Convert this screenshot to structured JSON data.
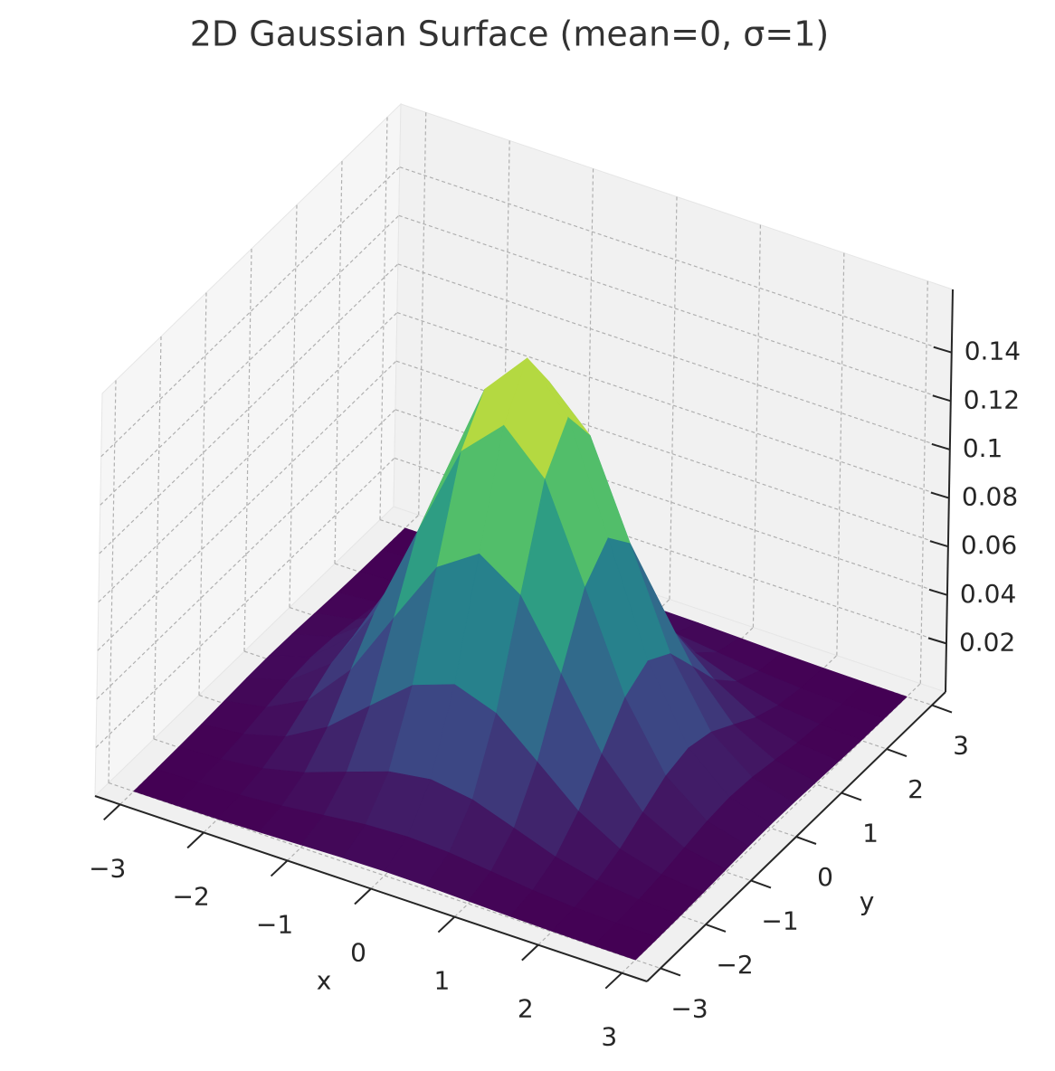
{
  "chart_data": {
    "type": "surface",
    "title": "2D Gaussian Surface (mean=0, σ=1)",
    "xlabel": "x",
    "ylabel": "y",
    "colormap": "viridis",
    "grid": true,
    "x": [
      -3,
      -2.5,
      -2,
      -1.5,
      -1,
      -0.5,
      0,
      0.5,
      1,
      1.5,
      2,
      2.5,
      3
    ],
    "y": [
      -3,
      -2.5,
      -2,
      -1.5,
      -1,
      -0.5,
      0,
      0.5,
      1,
      1.5,
      2,
      2.5,
      3
    ],
    "z": [
      [
        2e-05,
        8e-05,
        0.00024,
        0.00057,
        0.00107,
        0.00156,
        0.00177,
        0.00156,
        0.00107,
        0.00057,
        0.00024,
        8e-05,
        2e-05
      ],
      [
        8e-05,
        0.00031,
        0.00095,
        0.00227,
        0.00424,
        0.00617,
        0.00699,
        0.00617,
        0.00424,
        0.00227,
        0.00095,
        0.00031,
        8e-05
      ],
      [
        0.00024,
        0.00095,
        0.00292,
        0.00699,
        0.01306,
        0.01901,
        0.02154,
        0.01901,
        0.01306,
        0.00699,
        0.00292,
        0.00095,
        0.00024
      ],
      [
        0.00057,
        0.00227,
        0.00699,
        0.01677,
        0.03134,
        0.0456,
        0.05167,
        0.0456,
        0.03134,
        0.01677,
        0.00699,
        0.00227,
        0.00057
      ],
      [
        0.00107,
        0.00424,
        0.01306,
        0.03134,
        0.05855,
        0.08519,
        0.09653,
        0.08519,
        0.05855,
        0.03134,
        0.01306,
        0.00424,
        0.00107
      ],
      [
        0.00156,
        0.00617,
        0.01901,
        0.0456,
        0.08519,
        0.12395,
        0.14045,
        0.12395,
        0.08519,
        0.0456,
        0.01901,
        0.00617,
        0.00156
      ],
      [
        0.00177,
        0.00699,
        0.02154,
        0.05167,
        0.09653,
        0.14045,
        0.15915,
        0.14045,
        0.09653,
        0.05167,
        0.02154,
        0.00699,
        0.00177
      ],
      [
        0.00156,
        0.00617,
        0.01901,
        0.0456,
        0.08519,
        0.12395,
        0.14045,
        0.12395,
        0.08519,
        0.0456,
        0.01901,
        0.00617,
        0.00156
      ],
      [
        0.00107,
        0.00424,
        0.01306,
        0.03134,
        0.05855,
        0.08519,
        0.09653,
        0.08519,
        0.05855,
        0.03134,
        0.01306,
        0.00424,
        0.00107
      ],
      [
        0.00057,
        0.00227,
        0.00699,
        0.01677,
        0.03134,
        0.0456,
        0.05167,
        0.0456,
        0.03134,
        0.01677,
        0.00699,
        0.00227,
        0.00057
      ],
      [
        0.00024,
        0.00095,
        0.00292,
        0.00699,
        0.01306,
        0.01901,
        0.02154,
        0.01901,
        0.01306,
        0.00699,
        0.00292,
        0.00095,
        0.00024
      ],
      [
        8e-05,
        0.00031,
        0.00095,
        0.00227,
        0.00424,
        0.00617,
        0.00699,
        0.00617,
        0.00424,
        0.00227,
        0.00095,
        0.00031,
        8e-05
      ],
      [
        2e-05,
        8e-05,
        0.00024,
        0.00057,
        0.00107,
        0.00156,
        0.00177,
        0.00156,
        0.00107,
        0.00057,
        0.00024,
        8e-05,
        2e-05
      ]
    ],
    "xlim": [
      -3.3,
      3.3
    ],
    "ylim": [
      -3.3,
      3.3
    ],
    "zlim": [
      0,
      0.166
    ],
    "xticks": [
      {
        "value": -3,
        "label": "−3"
      },
      {
        "value": -2,
        "label": "−2"
      },
      {
        "value": -1,
        "label": "−1"
      },
      0,
      1,
      2,
      3
    ],
    "yticks": [
      {
        "value": -3,
        "label": "−3"
      },
      {
        "value": -2,
        "label": "−2"
      },
      {
        "value": -1,
        "label": "−1"
      },
      0,
      1,
      2,
      3
    ],
    "zticks": [
      0.02,
      0.04,
      0.06,
      0.08,
      0.1,
      0.12,
      0.14
    ]
  }
}
